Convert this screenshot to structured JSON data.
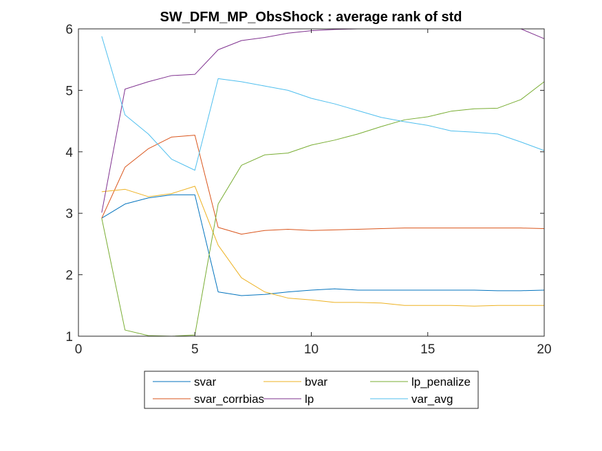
{
  "chart_data": {
    "type": "line",
    "title": "SW_DFM_MP_ObsShock : average rank of std",
    "xlabel": "",
    "ylabel": "",
    "xlim": [
      0,
      20
    ],
    "ylim": [
      1,
      6
    ],
    "xticks": [
      0,
      5,
      10,
      15,
      20
    ],
    "yticks": [
      1,
      2,
      3,
      4,
      5,
      6
    ],
    "grid": false,
    "legend_position": "bottom-outside",
    "x": [
      1,
      2,
      3,
      4,
      5,
      6,
      7,
      8,
      9,
      10,
      11,
      12,
      13,
      14,
      15,
      16,
      17,
      18,
      19,
      20
    ],
    "series": [
      {
        "name": "svar",
        "color": "#0072BD",
        "values": [
          2.92,
          3.15,
          3.25,
          3.3,
          3.3,
          1.72,
          1.66,
          1.68,
          1.72,
          1.75,
          1.77,
          1.75,
          1.75,
          1.75,
          1.75,
          1.75,
          1.75,
          1.74,
          1.74,
          1.75
        ]
      },
      {
        "name": "svar_corrbias",
        "color": "#D95319",
        "values": [
          2.92,
          3.75,
          4.05,
          4.24,
          4.27,
          2.77,
          2.66,
          2.72,
          2.74,
          2.72,
          2.73,
          2.74,
          2.75,
          2.76,
          2.76,
          2.76,
          2.76,
          2.76,
          2.76,
          2.75
        ]
      },
      {
        "name": "bvar",
        "color": "#EDB120",
        "values": [
          3.35,
          3.39,
          3.27,
          3.32,
          3.44,
          2.48,
          1.95,
          1.72,
          1.62,
          1.59,
          1.55,
          1.55,
          1.54,
          1.5,
          1.5,
          1.5,
          1.49,
          1.5,
          1.5,
          1.5
        ]
      },
      {
        "name": "lp",
        "color": "#7E2F8E",
        "values": [
          3.01,
          5.02,
          5.14,
          5.24,
          5.26,
          5.66,
          5.81,
          5.86,
          5.93,
          5.97,
          5.99,
          6.0,
          6.0,
          6.0,
          6.0,
          6.0,
          6.0,
          6.0,
          6.0,
          5.84
        ]
      },
      {
        "name": "lp_penalize",
        "color": "#77AC30",
        "values": [
          2.92,
          1.1,
          1.01,
          1.0,
          1.02,
          3.15,
          3.78,
          3.95,
          3.98,
          4.11,
          4.19,
          4.29,
          4.41,
          4.52,
          4.57,
          4.66,
          4.7,
          4.71,
          4.85,
          5.14
        ]
      },
      {
        "name": "var_avg",
        "color": "#4DBEEE",
        "values": [
          5.88,
          4.6,
          4.29,
          3.88,
          3.7,
          5.19,
          5.14,
          5.07,
          5.0,
          4.87,
          4.78,
          4.67,
          4.56,
          4.49,
          4.43,
          4.34,
          4.32,
          4.29,
          4.16,
          4.02
        ]
      }
    ]
  }
}
